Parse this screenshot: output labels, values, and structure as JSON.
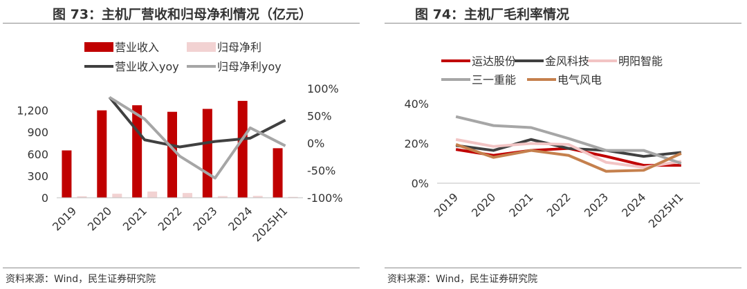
{
  "left_panel": {
    "title": "图 73：主机厂营收和归母净利情况（亿元）",
    "source": "资料来源：Wind，民生证券研究院"
  },
  "right_panel": {
    "title": "图 74：主机厂毛利率情况",
    "source": "资料来源：Wind，民生证券研究院"
  },
  "chart_data": [
    {
      "type": "bar",
      "categories": [
        "2019",
        "2020",
        "2021",
        "2022",
        "2023",
        "2024",
        "2025H1"
      ],
      "series": [
        {
          "name": "营业收入",
          "kind": "bar",
          "axis": "left",
          "color": "#c00000",
          "values": [
            650,
            1200,
            1270,
            1180,
            1220,
            1330,
            680
          ]
        },
        {
          "name": "归母净利",
          "kind": "bar",
          "axis": "left",
          "color": "#f2d2d2",
          "values": [
            20,
            55,
            85,
            65,
            22,
            25,
            12
          ]
        },
        {
          "name": "营业收入yoy",
          "kind": "line",
          "axis": "right",
          "color": "#404040",
          "values": [
            null,
            84,
            6,
            -7,
            3,
            9,
            42
          ]
        },
        {
          "name": "归母净利yoy",
          "kind": "line",
          "axis": "right",
          "color": "#a6a6a6",
          "values": [
            null,
            84,
            44,
            -24,
            -64,
            28,
            -5
          ]
        }
      ],
      "left_axis": {
        "ylim": [
          0,
          1500
        ],
        "ticks": [
          0,
          300,
          600,
          900,
          1200
        ],
        "tick_labels": [
          "0",
          "300",
          "600",
          "900",
          "1,200"
        ]
      },
      "right_axis": {
        "ylim": [
          -100,
          100
        ],
        "ticks": [
          -100,
          -50,
          0,
          50,
          100
        ],
        "tick_labels": [
          "-100%",
          "-50%",
          "0%",
          "50%",
          "100%"
        ]
      },
      "legend": "top"
    },
    {
      "type": "line",
      "categories": [
        "2019",
        "2020",
        "2021",
        "2022",
        "2023",
        "2024",
        "2025H1"
      ],
      "series": [
        {
          "name": "运达股份",
          "color": "#c00000",
          "values": [
            17,
            14,
            16.5,
            17.5,
            13.5,
            9,
            9
          ]
        },
        {
          "name": "金风科技",
          "color": "#404040",
          "values": [
            19,
            16.5,
            22,
            17.5,
            16.5,
            13.5,
            15.5
          ]
        },
        {
          "name": "明阳智能",
          "color": "#f2c4c4",
          "values": [
            22,
            18.5,
            20,
            19.5,
            10.5,
            8,
            11
          ]
        },
        {
          "name": "三一重能",
          "color": "#a6a6a6",
          "values": [
            33.5,
            29,
            28,
            22.5,
            16.5,
            16.5,
            10
          ]
        },
        {
          "name": "电气风电",
          "color": "#c5804d",
          "values": [
            19.5,
            13,
            16.5,
            14,
            6,
            6.5,
            15
          ]
        }
      ],
      "ylim": [
        0,
        40
      ],
      "ticks": [
        0,
        20,
        40
      ],
      "tick_labels": [
        "0%",
        "20%",
        "40%"
      ],
      "legend": "top"
    }
  ]
}
